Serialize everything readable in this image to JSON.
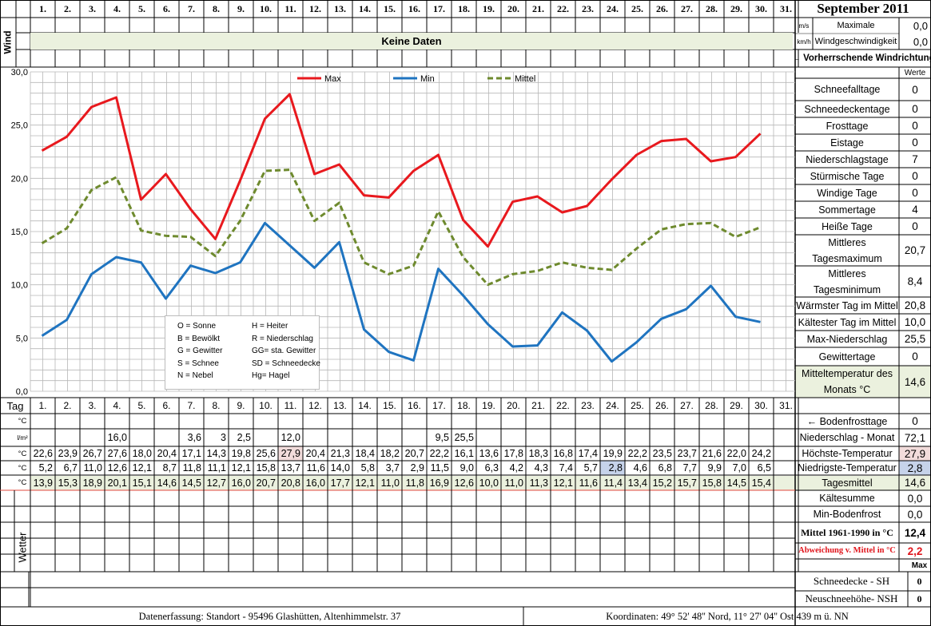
{
  "header": {
    "title": "September 2011",
    "days": [
      "1.",
      "2.",
      "3.",
      "4.",
      "5.",
      "6.",
      "7.",
      "8.",
      "9.",
      "10.",
      "11.",
      "12.",
      "13.",
      "14.",
      "15.",
      "16.",
      "17.",
      "18.",
      "19.",
      "20.",
      "21.",
      "22.",
      "23.",
      "24.",
      "25.",
      "26.",
      "27.",
      "28.",
      "29.",
      "30.",
      "31."
    ]
  },
  "wind": {
    "side_label": "Wind",
    "no_data": "Keine Daten",
    "unit_ms": "m/s",
    "unit_kmh": "km/h",
    "max_label_1": "Maximale",
    "max_label_2": "Windgeschwindigkeit",
    "max_ms": "0,0",
    "max_kmh": "0,0",
    "direction_label": "← Vorherrschende Windrichtung"
  },
  "stats": {
    "values_header": "Werte",
    "rows": [
      {
        "label": "Schneefalltage",
        "value": "0"
      },
      {
        "label": "Schneedeckentage",
        "value": "0"
      },
      {
        "label": "Frosttage",
        "value": "0"
      },
      {
        "label": "Eistage",
        "value": "0"
      },
      {
        "label": "Niederschlagstage",
        "value": "7"
      },
      {
        "label": "Stürmische Tage",
        "value": "0"
      },
      {
        "label": "Windige Tage",
        "value": "0"
      },
      {
        "label": "Sommertage",
        "value": "4"
      },
      {
        "label": "Heiße Tage",
        "value": "0"
      },
      {
        "label": "Mittleres Tagesmaximum",
        "value": "20,7"
      },
      {
        "label": "Mittleres Tagesminimum",
        "value": "8,4"
      },
      {
        "label": "Wärmster Tag im Mittel",
        "value": "20,8"
      },
      {
        "label": "Kältester Tag im Mittel",
        "value": "10,0"
      },
      {
        "label": "Max-Niederschlag",
        "value": "25,5"
      },
      {
        "label": "Gewittertage",
        "value": "0"
      },
      {
        "label": "Mitteltemperatur des Monats °C",
        "value": "14,6"
      }
    ]
  },
  "legend_box": {
    "items": [
      "O = Sonne",
      "H = Heiter",
      "B = Bewölkt",
      "R = Niederschlag",
      "G = Gewitter",
      "GG= sta. Gewitter",
      "S = Schnee",
      "SD = Schneedecke",
      "N = Nebel",
      "Hg= Hagel"
    ]
  },
  "chart_data": {
    "type": "line",
    "x": [
      1,
      2,
      3,
      4,
      5,
      6,
      7,
      8,
      9,
      10,
      11,
      12,
      13,
      14,
      15,
      16,
      17,
      18,
      19,
      20,
      21,
      22,
      23,
      24,
      25,
      26,
      27,
      28,
      29,
      30
    ],
    "ylim": [
      0,
      30
    ],
    "yticks": [
      "0,0",
      "5,0",
      "10,0",
      "15,0",
      "20,0",
      "25,0",
      "30,0"
    ],
    "grid": true,
    "legend_position": "top",
    "series": [
      {
        "name": "Max",
        "color": "#e8191e",
        "style": "solid",
        "values": [
          22.6,
          23.9,
          26.7,
          27.6,
          18.0,
          20.4,
          17.1,
          14.3,
          19.8,
          25.6,
          27.9,
          20.4,
          21.3,
          18.4,
          18.2,
          20.7,
          22.2,
          16.1,
          13.6,
          17.8,
          18.3,
          16.8,
          17.4,
          19.9,
          22.2,
          23.5,
          23.7,
          21.6,
          22.0,
          24.2
        ]
      },
      {
        "name": "Min",
        "color": "#1f74c0",
        "style": "solid",
        "values": [
          5.2,
          6.7,
          11.0,
          12.6,
          12.1,
          8.7,
          11.8,
          11.1,
          12.1,
          15.8,
          13.7,
          11.6,
          14.0,
          5.8,
          3.7,
          2.9,
          11.5,
          9.0,
          6.3,
          4.2,
          4.3,
          7.4,
          5.7,
          2.8,
          4.6,
          6.8,
          7.7,
          9.9,
          7.0,
          6.5
        ]
      },
      {
        "name": "Mittel",
        "color": "#6e8a2e",
        "style": "dashed",
        "values": [
          13.9,
          15.3,
          18.9,
          20.1,
          15.1,
          14.6,
          14.5,
          12.7,
          16.0,
          20.7,
          20.8,
          16.0,
          17.7,
          12.1,
          11.0,
          11.8,
          16.9,
          12.6,
          10.0,
          11.0,
          11.3,
          12.1,
          11.6,
          11.4,
          13.4,
          15.2,
          15.7,
          15.8,
          14.5,
          15.4
        ]
      }
    ]
  },
  "table": {
    "tag_label": "Tag",
    "unit_c": "°C",
    "unit_lm2": "l/m²",
    "precip": [
      "",
      "",
      "",
      "16,0",
      "",
      "",
      "3,6",
      "3",
      "2,5",
      "",
      "12,0",
      "",
      "",
      "",
      "",
      "",
      "9,5",
      "25,5",
      "",
      "",
      "",
      "",
      "",
      "",
      "",
      "",
      "",
      "",
      "",
      "",
      ""
    ],
    "max": [
      "22,6",
      "23,9",
      "26,7",
      "27,6",
      "18,0",
      "20,4",
      "17,1",
      "14,3",
      "19,8",
      "25,6",
      "27,9",
      "20,4",
      "21,3",
      "18,4",
      "18,2",
      "20,7",
      "22,2",
      "16,1",
      "13,6",
      "17,8",
      "18,3",
      "16,8",
      "17,4",
      "19,9",
      "22,2",
      "23,5",
      "23,7",
      "21,6",
      "22,0",
      "24,2",
      ""
    ],
    "min": [
      "5,2",
      "6,7",
      "11,0",
      "12,6",
      "12,1",
      "8,7",
      "11,8",
      "11,1",
      "12,1",
      "15,8",
      "13,7",
      "11,6",
      "14,0",
      "5,8",
      "3,7",
      "2,9",
      "11,5",
      "9,0",
      "6,3",
      "4,2",
      "4,3",
      "7,4",
      "5,7",
      "2,8",
      "4,6",
      "6,8",
      "7,7",
      "9,9",
      "7,0",
      "6,5",
      ""
    ],
    "mean": [
      "13,9",
      "15,3",
      "18,9",
      "20,1",
      "15,1",
      "14,6",
      "14,5",
      "12,7",
      "16,0",
      "20,7",
      "20,8",
      "16,0",
      "17,7",
      "12,1",
      "11,0",
      "11,8",
      "16,9",
      "12,6",
      "10,0",
      "11,0",
      "11,3",
      "12,1",
      "11,6",
      "11,4",
      "13,4",
      "15,2",
      "15,7",
      "15,8",
      "14,5",
      "15,4",
      ""
    ],
    "highlight_max_day": 11,
    "highlight_min_day": 24,
    "weather_label": "Wetter"
  },
  "summary": {
    "rows": [
      {
        "label": "← Bodenfrosttage",
        "value": "0"
      },
      {
        "label": "Niederschlag - Monat",
        "value": "72,1"
      },
      {
        "label": "Höchste-Temperatur",
        "value": "27,9"
      },
      {
        "label": "Niedrigste-Temperatur",
        "value": "2,8"
      },
      {
        "label": "Tagesmittel",
        "value": "14,6"
      },
      {
        "label": "Kältesumme",
        "value": "0,0"
      },
      {
        "label": "Min-Bodenfrost",
        "value": "0,0"
      },
      {
        "label": "Mittel 1961-1990 in °C",
        "value": "12,4"
      },
      {
        "label": "Abweichung v. Mittel in °C",
        "value": "2,2"
      }
    ],
    "max_label": "Max",
    "snow_rows": [
      {
        "label": "Schneedecke -  SH",
        "value": "0"
      },
      {
        "label": "Neuschneehöhe- NSH",
        "value": "0"
      }
    ]
  },
  "footer": {
    "left": "Datenerfassung:  Standort -  95496  Glashütten, Altenhimmelstr. 37",
    "right": "Koordinaten:  49° 52' 48'' Nord,   11° 27' 04'' Ost   439 m ü. NN"
  }
}
